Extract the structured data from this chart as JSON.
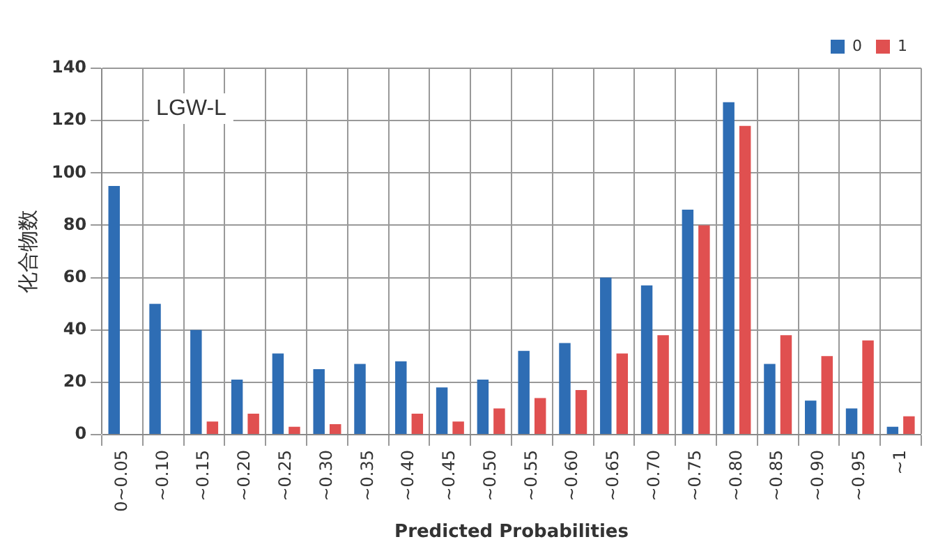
{
  "chart_data": {
    "type": "bar",
    "ylabel": "化合物数",
    "xlabel": "Predicted Probabilities",
    "annotations": [
      "LGW-L"
    ],
    "categories": [
      "0~0.05",
      "~0.10",
      "~0.15",
      "~0.20",
      "~0.25",
      "~0.30",
      "~0.35",
      "~0.40",
      "~0.45",
      "~0.50",
      "~0.55",
      "~0.60",
      "~0.65",
      "~0.70",
      "~0.75",
      "~0.80",
      "~0.85",
      "~0.90",
      "~0.95",
      "~1"
    ],
    "series": [
      {
        "name": "0",
        "color": "#2e6db4",
        "values": [
          95,
          50,
          40,
          21,
          31,
          25,
          27,
          28,
          18,
          21,
          32,
          35,
          60,
          57,
          86,
          127,
          27,
          13,
          10,
          3
        ]
      },
      {
        "name": "1",
        "color": "#e05050",
        "values": [
          0,
          0,
          5,
          8,
          3,
          4,
          0,
          8,
          5,
          10,
          14,
          17,
          31,
          38,
          80,
          118,
          38,
          30,
          36,
          7
        ]
      }
    ],
    "ylim": [
      0,
      140
    ],
    "yticks": [
      0,
      20,
      40,
      60,
      80,
      100,
      120,
      140
    ],
    "grid": true,
    "legend": "top right"
  }
}
